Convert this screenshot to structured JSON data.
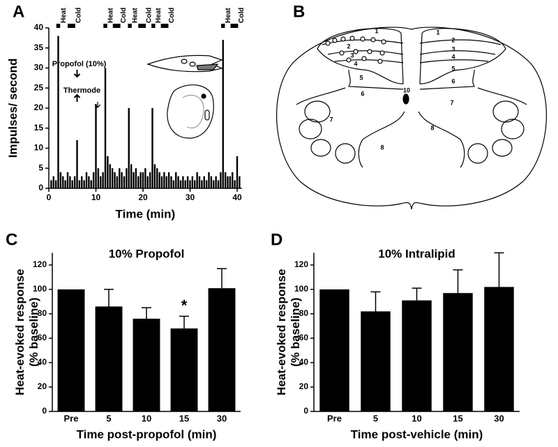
{
  "panels": [
    "A",
    "B",
    "C",
    "D"
  ],
  "panel_b": {
    "left_labels": [
      "1",
      "2",
      "3",
      "4",
      "5",
      "6",
      "7",
      "8",
      "10"
    ],
    "right_labels": [
      "1",
      "2",
      "3",
      "4",
      "5",
      "6",
      "7",
      "8"
    ]
  },
  "chart_data": [
    {
      "type": "bar",
      "xlabel": "Time (min)",
      "ylabel": "Impulses/ second",
      "color": "#000000",
      "x": [
        0.5,
        1,
        1.5,
        2,
        2.5,
        3,
        3.5,
        4,
        4.5,
        5,
        5.5,
        6,
        6.5,
        7,
        7.5,
        8,
        8.5,
        9,
        9.5,
        10,
        10.5,
        11,
        11.5,
        12,
        12.5,
        13,
        13.5,
        14,
        14.5,
        15,
        15.5,
        16,
        16.5,
        17,
        17.5,
        18,
        18.5,
        19,
        19.5,
        20,
        20.5,
        21,
        21.5,
        22,
        22.5,
        23,
        23.5,
        24,
        24.5,
        25,
        25.5,
        26,
        26.5,
        27,
        27.5,
        28,
        28.5,
        29,
        29.5,
        30,
        30.5,
        31,
        31.5,
        32,
        32.5,
        33,
        33.5,
        34,
        34.5,
        35,
        35.5,
        36,
        36.5,
        37,
        37.5,
        38,
        38.5,
        39,
        39.5,
        40,
        40.5
      ],
      "values": [
        2,
        3,
        2,
        38,
        4,
        3,
        2,
        4,
        3,
        2,
        3,
        12,
        2,
        3,
        2,
        4,
        3,
        2,
        4,
        21,
        5,
        3,
        4,
        30,
        8,
        6,
        5,
        4,
        3,
        5,
        4,
        3,
        5,
        20,
        6,
        4,
        5,
        3,
        4,
        4,
        5,
        3,
        4,
        20,
        6,
        5,
        4,
        3,
        4,
        3,
        4,
        3,
        2,
        4,
        3,
        2,
        3,
        2,
        3,
        2,
        3,
        2,
        4,
        3,
        2,
        3,
        2,
        4,
        3,
        2,
        3,
        2,
        4,
        37,
        4,
        3,
        3,
        4,
        2,
        8,
        3
      ],
      "xlim": [
        0,
        41
      ],
      "ylim": [
        0,
        40
      ],
      "xticks": [
        0,
        10,
        20,
        30,
        40
      ],
      "yticks": [
        0,
        5,
        10,
        15,
        20,
        25,
        30,
        35,
        40
      ],
      "stimuli": [
        {
          "label": "Heat",
          "start": 1.6,
          "end": 2.4
        },
        {
          "label": "Cold",
          "start": 4,
          "end": 5.6
        },
        {
          "label": "Heat",
          "start": 11.6,
          "end": 12.4
        },
        {
          "label": "Cold",
          "start": 13.6,
          "end": 15.2
        },
        {
          "label": "Heat",
          "start": 16.8,
          "end": 17.6
        },
        {
          "label": "Cold",
          "start": 19,
          "end": 20.6
        },
        {
          "label": "Heat",
          "start": 21.8,
          "end": 22.6
        },
        {
          "label": "Cold",
          "start": 23.8,
          "end": 25.4
        },
        {
          "label": "Heat",
          "start": 36.6,
          "end": 37.4
        },
        {
          "label": "Cold",
          "start": 38.6,
          "end": 40.2
        }
      ],
      "annotations": [
        {
          "text": "Propofol (10%)",
          "x": 6
        },
        {
          "text": "Thermode",
          "x": 6
        }
      ]
    },
    {
      "type": "bar",
      "title": "10% Propofol",
      "xlabel": "Time post-propofol (min)",
      "ylabel": "Heat-evoked response\n(% baseline)",
      "color": "#000000",
      "categories": [
        "Pre",
        "5",
        "10",
        "15",
        "30"
      ],
      "values": [
        100,
        86,
        76,
        68,
        101
      ],
      "errors": [
        null,
        14,
        9,
        10,
        16
      ],
      "ylim": [
        0,
        130
      ],
      "yticks": [
        0,
        20,
        40,
        60,
        80,
        100,
        120
      ],
      "annotations": [
        {
          "text": "*",
          "x": "15"
        }
      ]
    },
    {
      "type": "bar",
      "title": "10% Intralipid",
      "xlabel": "Time post-vehicle (min)",
      "ylabel": "Heat-evoked response\n(% baseline)",
      "color": "#000000",
      "categories": [
        "Pre",
        "5",
        "10",
        "15",
        "30"
      ],
      "values": [
        100,
        82,
        91,
        97,
        102
      ],
      "errors": [
        null,
        16,
        10,
        19,
        28
      ],
      "ylim": [
        0,
        130
      ],
      "yticks": [
        0,
        20,
        40,
        60,
        80,
        100,
        120
      ]
    }
  ]
}
